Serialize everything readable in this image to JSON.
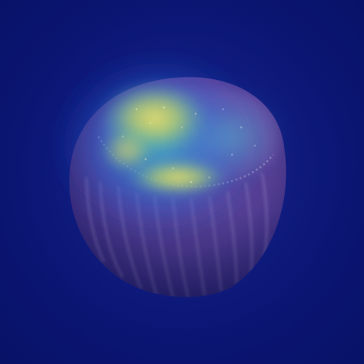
{
  "image": {
    "description_kind": "heatmap-overlay-photo",
    "subject_icon": "hazelnut-icon",
    "colors": {
      "background": "#0b1677",
      "object_body": "#6a4aa6",
      "object_shadow": "#3a2a7c",
      "heat_low": "#2a5fd0",
      "heat_mid": "#39c2b5",
      "heat_high": "#e3d75a"
    }
  }
}
